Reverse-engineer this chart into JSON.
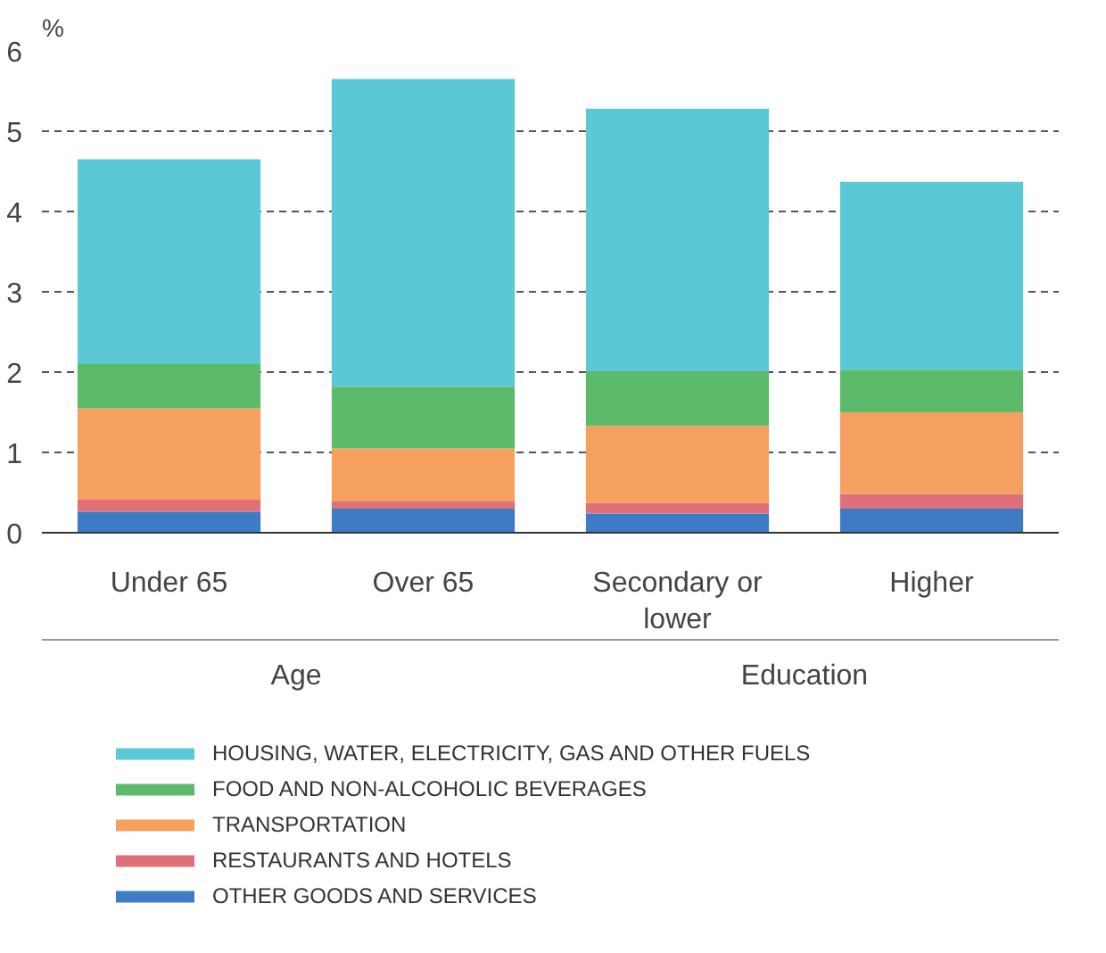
{
  "chart_data": {
    "type": "bar",
    "stacked": true,
    "ylabel": "%",
    "categories": [
      "Under 65",
      "Over 65",
      "Secondary or\nlower",
      "Higher"
    ],
    "annotations": [
      "Age",
      "Education"
    ],
    "series": [
      {
        "name": "OTHER GOODS AND SERVICES",
        "color": "#3d7cc4",
        "values": [
          0.26,
          0.3,
          0.24,
          0.3
        ]
      },
      {
        "name": "RESTAURANTS AND HOTELS",
        "color": "#e06f7a",
        "values": [
          0.15,
          0.09,
          0.13,
          0.18
        ]
      },
      {
        "name": "TRANSPORTATION",
        "color": "#f5a05e",
        "values": [
          1.14,
          0.66,
          0.96,
          1.02
        ]
      },
      {
        "name": "FOOD AND NON-ALCOHOLIC BEVERAGES",
        "color": "#5cbb6a",
        "values": [
          0.55,
          0.77,
          0.68,
          0.53
        ]
      },
      {
        "name": "HOUSING, WATER, ELECTRICITY, GAS AND OTHER FUELS",
        "color": "#5bc8d6",
        "values": [
          2.55,
          3.83,
          3.27,
          2.34
        ]
      }
    ],
    "ylim": [
      0,
      6
    ],
    "yticks": [
      0,
      1,
      2,
      3,
      4,
      5,
      6
    ],
    "grid": "y",
    "legend": "bottom"
  }
}
